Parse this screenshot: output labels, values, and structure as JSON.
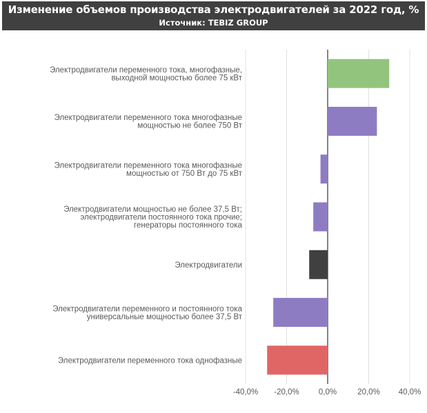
{
  "header": {
    "title": "Изменение объемов производства электродвигателей за 2022 год, %",
    "subtitle": "Источник: TEBIZ GROUP"
  },
  "chart_data": {
    "type": "bar",
    "orientation": "horizontal",
    "title": "Изменение объемов производства электродвигателей за 2022 год, %",
    "subtitle": "Источник: TEBIZ GROUP",
    "categories": [
      [
        "Электродвигатели переменного тока, многофазные,",
        "выходной мощностью более 75 кВт"
      ],
      [
        "Электродвигатели переменного тока многофазные",
        "мощностью не более 750 Вт"
      ],
      [
        "Электродвигатели переменного тока многофазные",
        "мощностью от 750 Вт до 75 кВт"
      ],
      [
        "Электродвигатели мощностью не более 37,5 Вт;",
        "электродвигатели постоянного тока прочие;",
        "генераторы постоянного тока"
      ],
      [
        "Электродвигатели"
      ],
      [
        "Электродвигатели переменного и постоянного тока",
        "универсальные мощностью более 37,5 Вт"
      ],
      [
        "Электродвигатели переменного тока однофазные"
      ]
    ],
    "values": [
      30.0,
      24.0,
      -3.5,
      -7.0,
      -9.0,
      -26.5,
      -29.5
    ],
    "colors": [
      "#93c47d",
      "#8e7cc3",
      "#8e7cc3",
      "#8e7cc3",
      "#404040",
      "#8e7cc3",
      "#e06666"
    ],
    "xlim": [
      -40,
      40
    ],
    "xticks": [
      -40,
      -20,
      0,
      20,
      40
    ],
    "xtick_labels": [
      "-40,0%",
      "-20,0%",
      "0,0%",
      "20,0%",
      "40,0%"
    ],
    "grid": true
  }
}
